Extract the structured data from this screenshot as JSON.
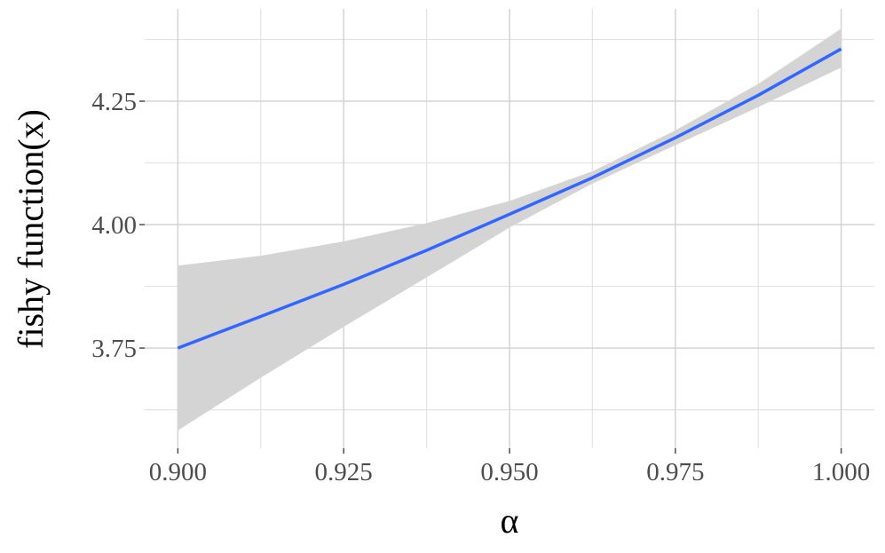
{
  "chart_data": {
    "type": "line",
    "y_label": "fishy function(x)",
    "x_label": "α",
    "x": [
      0.9,
      0.9125,
      0.925,
      0.9375,
      0.95,
      0.9625,
      0.975,
      0.9875,
      1.0
    ],
    "values": [
      3.75,
      3.814,
      3.879,
      3.948,
      4.021,
      4.095,
      4.176,
      4.262,
      4.356
    ],
    "lower": [
      3.583,
      3.69,
      3.793,
      3.893,
      3.994,
      4.083,
      4.161,
      4.238,
      4.318
    ],
    "upper": [
      3.917,
      3.937,
      3.966,
      4.003,
      4.048,
      4.108,
      4.191,
      4.285,
      4.397
    ],
    "color": "#3366ff",
    "band_color": "#d4d4d4",
    "xlim": [
      0.895,
      1.005
    ],
    "ylim": [
      3.547,
      4.437
    ],
    "xticks": [
      {
        "value": 0.9,
        "label": "0.900"
      },
      {
        "value": 0.925,
        "label": "0.925"
      },
      {
        "value": 0.95,
        "label": "0.950"
      },
      {
        "value": 0.975,
        "label": "0.975"
      },
      {
        "value": 1.0,
        "label": "1.000"
      }
    ],
    "yticks": [
      3.75,
      {
        "value": 4.0,
        "label": "4.00"
      },
      4.25
    ],
    "minor_xticks": [
      0.9125,
      0.9375,
      0.9625,
      0.9875
    ],
    "minor_yticks": [
      3.625,
      3.875,
      4.125,
      4.375
    ],
    "grid": true
  }
}
